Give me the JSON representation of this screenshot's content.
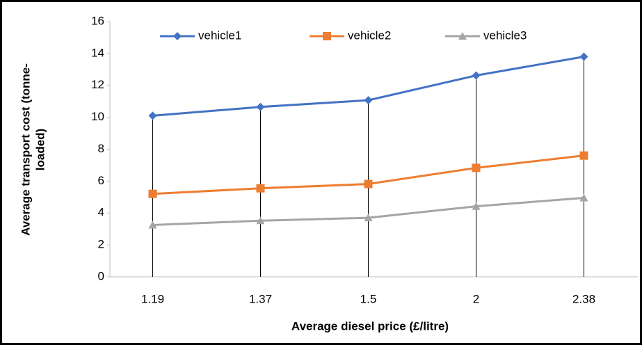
{
  "chart_data": {
    "type": "line",
    "x_label": "Average diesel price (£/litre)",
    "y_label": [
      "Average transport cost (tonne-",
      "loaded)"
    ],
    "categories": [
      "1.19",
      "1.37",
      "1.5",
      "2",
      "2.38"
    ],
    "series": [
      {
        "name": "vehicle1",
        "color": "#4472c4",
        "marker": "diamond",
        "values": [
          10.1,
          10.65,
          11.07,
          12.62,
          13.8
        ]
      },
      {
        "name": "vehicle2",
        "color": "#ed7d31",
        "marker": "square",
        "values": [
          5.2,
          5.55,
          5.82,
          6.83,
          7.6
        ]
      },
      {
        "name": "vehicle3",
        "color": "#a5a5a5",
        "marker": "triangle",
        "values": [
          3.25,
          3.52,
          3.7,
          4.42,
          4.95
        ]
      }
    ],
    "ylim": [
      0,
      16
    ],
    "yticks": [
      0,
      2,
      4,
      6,
      8,
      10,
      12,
      14,
      16
    ],
    "drop_lines": true,
    "legend": "top"
  }
}
